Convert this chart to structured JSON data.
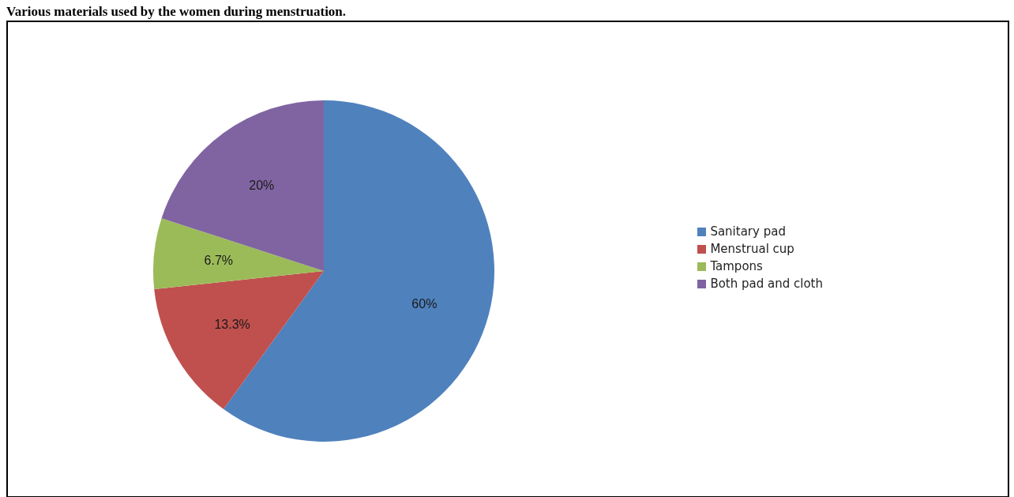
{
  "chart_data": {
    "type": "pie",
    "title": "Various materials used by the women during menstruation.",
    "categories": [
      "Sanitary pad",
      "Menstrual cup",
      "Tampons",
      "Both pad and cloth"
    ],
    "values": [
      60,
      13.3,
      6.7,
      20
    ],
    "colors": [
      "#4f81bd",
      "#c0504d",
      "#9bbb59",
      "#8064a2"
    ],
    "value_labels": [
      "60%",
      "13.3%",
      "6.7%",
      "20%"
    ],
    "legend": "right"
  }
}
